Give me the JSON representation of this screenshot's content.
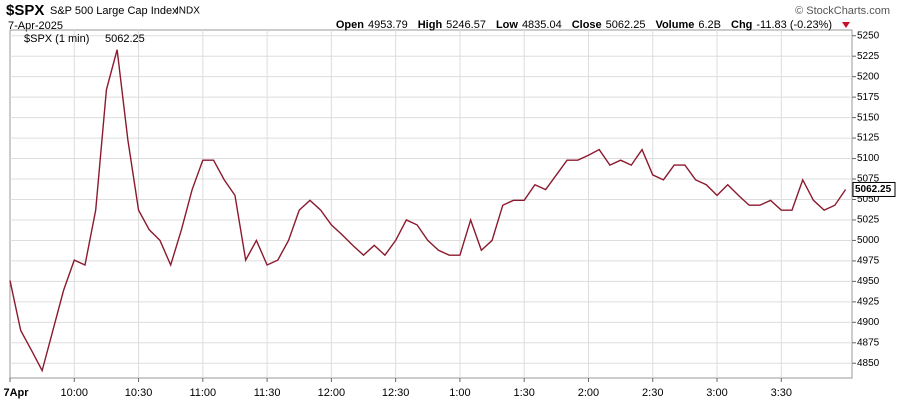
{
  "chart_data": {
    "type": "line",
    "title": "$SPX",
    "subtitle": "S&P 500 Large Cap Index",
    "exchange": "INDX",
    "date": "7-Apr-2025",
    "copyright": "© StockCharts.com",
    "stats": [
      {
        "label": "Open",
        "value": 4953.79
      },
      {
        "label": "High",
        "value": 5246.57
      },
      {
        "label": "Low",
        "value": 4835.04
      },
      {
        "label": "Close",
        "value": 5062.25
      },
      {
        "label": "Volume",
        "value": "6.2B"
      },
      {
        "label": "Chg",
        "value": "-11.83 (-0.23%)"
      }
    ],
    "x": [
      0,
      5,
      10,
      15,
      20,
      25,
      30,
      35,
      40,
      45,
      50,
      55,
      60,
      65,
      70,
      75,
      80,
      85,
      90,
      95,
      100,
      105,
      110,
      115,
      120,
      125,
      130,
      135,
      140,
      145,
      150,
      155,
      160,
      165,
      170,
      175,
      180,
      185,
      190,
      195,
      200,
      205,
      210,
      215,
      220,
      225,
      230,
      235,
      240,
      245,
      250,
      255,
      260,
      265,
      270,
      275,
      280,
      285,
      290,
      295,
      300,
      305,
      310,
      315,
      320,
      325,
      330,
      335,
      340,
      345,
      350,
      355,
      360,
      365,
      370,
      375,
      380,
      385,
      390
    ],
    "series": [
      {
        "name": "$SPX (1 min)",
        "color": "#8b1a2e",
        "values": [
          4951,
          4890,
          4866,
          4841,
          4890,
          4939,
          4976,
          4970,
          5037,
          5184,
          5233,
          5123,
          5037,
          5013,
          5000,
          4970,
          5013,
          5062,
          5098,
          5098,
          5074,
          5055,
          4976,
          5000,
          4970,
          4976,
          5000,
          5037,
          5049,
          5037,
          5019,
          5007,
          4994,
          4982,
          4994,
          4982,
          5000,
          5025,
          5019,
          5000,
          4988,
          4982,
          4982,
          5025,
          4988,
          5000,
          5043,
          5049,
          5049,
          5068,
          5062,
          5080,
          5098,
          5098,
          5104,
          5111,
          5092,
          5098,
          5092,
          5111,
          5080,
          5074,
          5092,
          5092,
          5074,
          5068,
          5055,
          5068,
          5055,
          5043,
          5043,
          5049,
          5037,
          5037,
          5074,
          5049,
          5037,
          5043,
          5062.25
        ]
      }
    ],
    "xlim": [
      0,
      393
    ],
    "xticks": [
      {
        "value": 0,
        "label": "7Apr"
      },
      {
        "value": 30,
        "label": "10:00"
      },
      {
        "value": 60,
        "label": "10:30"
      },
      {
        "value": 90,
        "label": "11:00"
      },
      {
        "value": 120,
        "label": "11:30"
      },
      {
        "value": 150,
        "label": "12:00"
      },
      {
        "value": 180,
        "label": "12:30"
      },
      {
        "value": 210,
        "label": "1:00"
      },
      {
        "value": 240,
        "label": "1:30"
      },
      {
        "value": 270,
        "label": "2:00"
      },
      {
        "value": 300,
        "label": "2:30"
      },
      {
        "value": 330,
        "label": "3:00"
      },
      {
        "value": 360,
        "label": "3:30"
      }
    ],
    "ylim": [
      4832,
      5257
    ],
    "yticks": [
      4850,
      4875,
      4900,
      4925,
      4950,
      4975,
      5000,
      5025,
      5050,
      5075,
      5100,
      5125,
      5150,
      5175,
      5200,
      5225,
      5250
    ],
    "grid": true
  }
}
